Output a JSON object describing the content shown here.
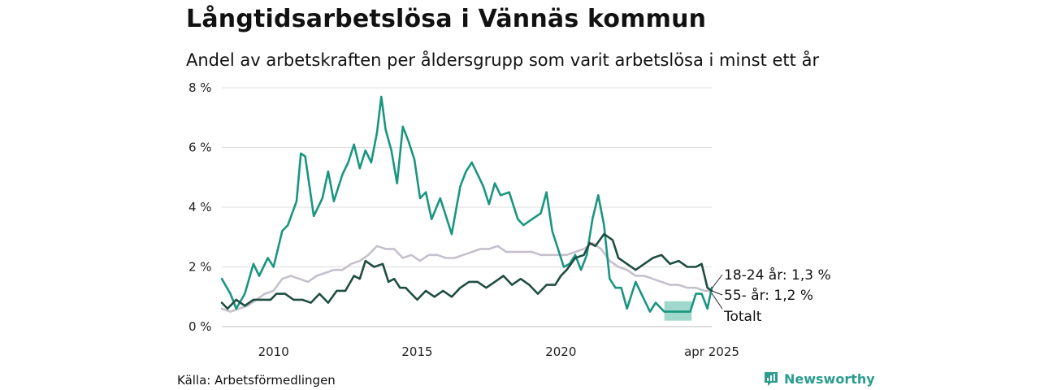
{
  "header": {
    "title": "Långtidsarbetslösa i Vännäs kommun",
    "subtitle": "Andel av arbetskraften per åldersgrupp som varit arbetslösa i minst ett år"
  },
  "footer": {
    "source": "Källa: Arbetsförmedlingen",
    "brand": "Newsworthy"
  },
  "colors": {
    "youth": "#1a9580",
    "senior": "#1f4d42",
    "total": "#c5c0cb",
    "band": "#8fd1c2",
    "grid": "#dcdcdc",
    "brand": "#2a9d8f"
  },
  "chart_data": {
    "type": "line",
    "ylim": [
      0,
      8
    ],
    "xlim": [
      2008.2,
      2025.25
    ],
    "y_ticks": [
      {
        "value": 0,
        "label": "0 %"
      },
      {
        "value": 2,
        "label": "2 %"
      },
      {
        "value": 4,
        "label": "4 %"
      },
      {
        "value": 6,
        "label": "6 %"
      },
      {
        "value": 8,
        "label": "8 %"
      }
    ],
    "x_ticks": [
      {
        "value": 2010,
        "label": "2010"
      },
      {
        "value": 2015,
        "label": "2015"
      },
      {
        "value": 2020,
        "label": "2020"
      },
      {
        "value": 2025.25,
        "label": "apr 2025"
      }
    ],
    "grid": true,
    "series": [
      {
        "key": "youth",
        "end_label": "18-24 år: 1,3 %",
        "color": "#1a9580",
        "points": [
          [
            2008.2,
            1.6
          ],
          [
            2008.5,
            1.1
          ],
          [
            2008.7,
            0.6
          ],
          [
            2009.0,
            1.1
          ],
          [
            2009.3,
            2.1
          ],
          [
            2009.5,
            1.7
          ],
          [
            2009.8,
            2.3
          ],
          [
            2010.0,
            2.0
          ],
          [
            2010.3,
            3.2
          ],
          [
            2010.5,
            3.4
          ],
          [
            2010.8,
            4.2
          ],
          [
            2010.95,
            5.8
          ],
          [
            2011.1,
            5.7
          ],
          [
            2011.4,
            3.7
          ],
          [
            2011.7,
            4.3
          ],
          [
            2011.9,
            5.2
          ],
          [
            2012.1,
            4.2
          ],
          [
            2012.4,
            5.1
          ],
          [
            2012.6,
            5.5
          ],
          [
            2012.8,
            6.1
          ],
          [
            2013.0,
            5.3
          ],
          [
            2013.2,
            5.9
          ],
          [
            2013.4,
            5.5
          ],
          [
            2013.6,
            6.5
          ],
          [
            2013.75,
            7.7
          ],
          [
            2013.9,
            6.6
          ],
          [
            2014.1,
            5.9
          ],
          [
            2014.3,
            4.8
          ],
          [
            2014.5,
            6.7
          ],
          [
            2014.7,
            6.2
          ],
          [
            2014.9,
            5.6
          ],
          [
            2015.1,
            4.3
          ],
          [
            2015.3,
            4.5
          ],
          [
            2015.5,
            3.6
          ],
          [
            2015.8,
            4.3
          ],
          [
            2016.0,
            3.7
          ],
          [
            2016.2,
            3.1
          ],
          [
            2016.5,
            4.7
          ],
          [
            2016.7,
            5.2
          ],
          [
            2016.9,
            5.5
          ],
          [
            2017.1,
            5.1
          ],
          [
            2017.3,
            4.7
          ],
          [
            2017.5,
            4.1
          ],
          [
            2017.7,
            4.8
          ],
          [
            2017.9,
            4.4
          ],
          [
            2018.2,
            4.5
          ],
          [
            2018.5,
            3.6
          ],
          [
            2018.7,
            3.4
          ],
          [
            2019.0,
            3.6
          ],
          [
            2019.3,
            3.8
          ],
          [
            2019.5,
            4.5
          ],
          [
            2019.7,
            3.2
          ],
          [
            2019.9,
            2.6
          ],
          [
            2020.1,
            2.0
          ],
          [
            2020.3,
            2.1
          ],
          [
            2020.5,
            2.4
          ],
          [
            2020.7,
            1.9
          ],
          [
            2020.9,
            2.4
          ],
          [
            2021.1,
            3.6
          ],
          [
            2021.3,
            4.4
          ],
          [
            2021.5,
            3.4
          ],
          [
            2021.7,
            1.6
          ],
          [
            2021.9,
            1.3
          ],
          [
            2022.1,
            1.3
          ],
          [
            2022.3,
            0.6
          ],
          [
            2022.6,
            1.5
          ],
          [
            2022.9,
            0.9
          ],
          [
            2023.1,
            0.5
          ],
          [
            2023.3,
            0.8
          ],
          [
            2023.6,
            0.5
          ],
          [
            2024.2,
            0.5
          ],
          [
            2024.5,
            0.5
          ],
          [
            2024.7,
            1.1
          ],
          [
            2024.9,
            1.1
          ],
          [
            2025.1,
            0.6
          ],
          [
            2025.25,
            1.3
          ]
        ]
      },
      {
        "key": "senior",
        "end_label": "55- år: 1,2 %",
        "color": "#1f4d42",
        "points": [
          [
            2008.2,
            0.8
          ],
          [
            2008.4,
            0.6
          ],
          [
            2008.7,
            0.9
          ],
          [
            2009.0,
            0.7
          ],
          [
            2009.3,
            0.9
          ],
          [
            2009.6,
            0.9
          ],
          [
            2009.9,
            0.9
          ],
          [
            2010.1,
            1.1
          ],
          [
            2010.4,
            1.1
          ],
          [
            2010.7,
            0.9
          ],
          [
            2011.0,
            0.9
          ],
          [
            2011.3,
            0.8
          ],
          [
            2011.6,
            1.1
          ],
          [
            2011.9,
            0.8
          ],
          [
            2012.2,
            1.2
          ],
          [
            2012.5,
            1.2
          ],
          [
            2012.8,
            1.7
          ],
          [
            2013.0,
            1.6
          ],
          [
            2013.2,
            2.2
          ],
          [
            2013.5,
            2.0
          ],
          [
            2013.8,
            2.1
          ],
          [
            2014.0,
            1.5
          ],
          [
            2014.2,
            1.6
          ],
          [
            2014.4,
            1.3
          ],
          [
            2014.6,
            1.3
          ],
          [
            2014.8,
            1.1
          ],
          [
            2015.0,
            0.9
          ],
          [
            2015.3,
            1.2
          ],
          [
            2015.6,
            1.0
          ],
          [
            2015.9,
            1.2
          ],
          [
            2016.2,
            1.0
          ],
          [
            2016.5,
            1.3
          ],
          [
            2016.8,
            1.5
          ],
          [
            2017.1,
            1.5
          ],
          [
            2017.4,
            1.3
          ],
          [
            2017.7,
            1.5
          ],
          [
            2018.0,
            1.7
          ],
          [
            2018.3,
            1.4
          ],
          [
            2018.6,
            1.6
          ],
          [
            2018.9,
            1.4
          ],
          [
            2019.2,
            1.1
          ],
          [
            2019.5,
            1.4
          ],
          [
            2019.8,
            1.4
          ],
          [
            2020.0,
            1.7
          ],
          [
            2020.2,
            1.9
          ],
          [
            2020.5,
            2.3
          ],
          [
            2020.8,
            2.4
          ],
          [
            2021.0,
            2.8
          ],
          [
            2021.2,
            2.7
          ],
          [
            2021.5,
            3.1
          ],
          [
            2021.8,
            2.9
          ],
          [
            2022.0,
            2.3
          ],
          [
            2022.3,
            2.1
          ],
          [
            2022.6,
            1.9
          ],
          [
            2022.9,
            2.1
          ],
          [
            2023.2,
            2.3
          ],
          [
            2023.5,
            2.4
          ],
          [
            2023.8,
            2.1
          ],
          [
            2024.1,
            2.2
          ],
          [
            2024.4,
            2.0
          ],
          [
            2024.7,
            2.0
          ],
          [
            2024.9,
            2.1
          ],
          [
            2025.1,
            1.3
          ],
          [
            2025.25,
            1.2
          ]
        ]
      },
      {
        "key": "total",
        "end_label": "Totalt",
        "color": "#c5c0cb",
        "points": [
          [
            2008.2,
            0.6
          ],
          [
            2008.5,
            0.5
          ],
          [
            2008.8,
            0.6
          ],
          [
            2009.1,
            0.7
          ],
          [
            2009.4,
            0.9
          ],
          [
            2009.7,
            1.1
          ],
          [
            2010.0,
            1.2
          ],
          [
            2010.3,
            1.6
          ],
          [
            2010.6,
            1.7
          ],
          [
            2010.9,
            1.6
          ],
          [
            2011.2,
            1.5
          ],
          [
            2011.5,
            1.7
          ],
          [
            2011.8,
            1.8
          ],
          [
            2012.1,
            1.9
          ],
          [
            2012.4,
            1.9
          ],
          [
            2012.7,
            2.1
          ],
          [
            2013.0,
            2.2
          ],
          [
            2013.3,
            2.4
          ],
          [
            2013.6,
            2.7
          ],
          [
            2013.9,
            2.6
          ],
          [
            2014.2,
            2.6
          ],
          [
            2014.5,
            2.3
          ],
          [
            2014.8,
            2.4
          ],
          [
            2015.1,
            2.2
          ],
          [
            2015.4,
            2.4
          ],
          [
            2015.7,
            2.4
          ],
          [
            2016.0,
            2.3
          ],
          [
            2016.3,
            2.3
          ],
          [
            2016.6,
            2.4
          ],
          [
            2016.9,
            2.5
          ],
          [
            2017.2,
            2.6
          ],
          [
            2017.5,
            2.6
          ],
          [
            2017.8,
            2.7
          ],
          [
            2018.1,
            2.5
          ],
          [
            2018.4,
            2.5
          ],
          [
            2018.7,
            2.5
          ],
          [
            2019.0,
            2.5
          ],
          [
            2019.3,
            2.4
          ],
          [
            2019.6,
            2.4
          ],
          [
            2019.9,
            2.4
          ],
          [
            2020.2,
            2.4
          ],
          [
            2020.5,
            2.5
          ],
          [
            2020.8,
            2.6
          ],
          [
            2021.1,
            2.8
          ],
          [
            2021.4,
            2.6
          ],
          [
            2021.7,
            2.2
          ],
          [
            2022.0,
            2.0
          ],
          [
            2022.3,
            1.9
          ],
          [
            2022.6,
            1.7
          ],
          [
            2022.9,
            1.7
          ],
          [
            2023.2,
            1.6
          ],
          [
            2023.5,
            1.5
          ],
          [
            2023.8,
            1.4
          ],
          [
            2024.1,
            1.4
          ],
          [
            2024.4,
            1.3
          ],
          [
            2024.7,
            1.3
          ],
          [
            2025.0,
            1.2
          ],
          [
            2025.25,
            1.2
          ]
        ]
      }
    ],
    "band": {
      "x_start": 2023.6,
      "x_end": 2024.55,
      "y_low": 0.2,
      "y_high": 0.85
    }
  }
}
